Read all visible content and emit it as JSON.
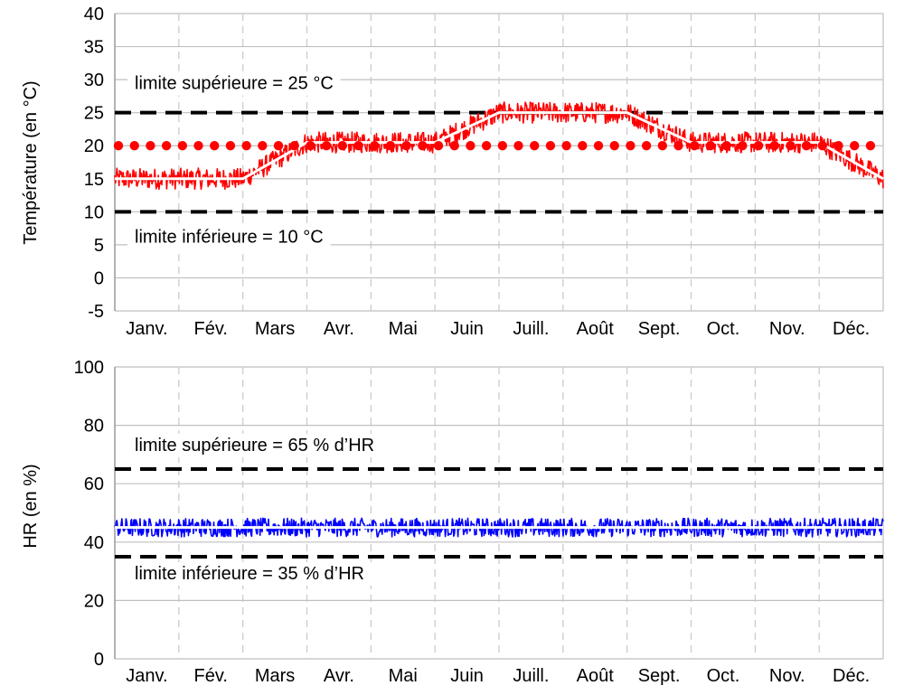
{
  "chart_data": [
    {
      "type": "line",
      "ylabel": "Température (en °C)",
      "ylim": [
        -5,
        40
      ],
      "yticks": [
        -5,
        0,
        5,
        10,
        15,
        20,
        25,
        30,
        35,
        40
      ],
      "categories": [
        "Janv.",
        "Fév.",
        "Mars",
        "Avr.",
        "Mai",
        "Juin",
        "Juill.",
        "Août",
        "Sept.",
        "Oct.",
        "Nov.",
        "Déc."
      ],
      "grid": "on",
      "series": [
        {
          "values": [
            15,
            15,
            20.5,
            20.5,
            25,
            25,
            20.5,
            20.5,
            15
          ],
          "x": [
            0,
            2,
            3,
            5,
            6,
            8,
            9,
            11,
            12
          ],
          "noise_band": 2,
          "color": "#ff0000"
        },
        {
          "values": [
            20,
            20
          ],
          "x": [
            0,
            12
          ],
          "style": "dotted",
          "color": "#ff0000"
        }
      ],
      "limits": [
        {
          "value": 25,
          "label": "limite supérieure = 25 °C"
        },
        {
          "value": 10,
          "label": "limite inférieure = 10 °C"
        }
      ]
    },
    {
      "type": "line",
      "ylabel": "HR (en %)",
      "ylim": [
        0,
        100
      ],
      "yticks": [
        0,
        20,
        40,
        60,
        80,
        100
      ],
      "categories": [
        "Janv.",
        "Fév.",
        "Mars",
        "Avr.",
        "Mai",
        "Juin",
        "Juill.",
        "Août",
        "Sept.",
        "Oct.",
        "Nov.",
        "Déc."
      ],
      "grid": "on",
      "series": [
        {
          "values": [
            45,
            45
          ],
          "x": [
            0,
            12
          ],
          "noise_band": 4,
          "color": "#0000ff"
        }
      ],
      "limits": [
        {
          "value": 65,
          "label": "limite supérieure = 65 % d’HR"
        },
        {
          "value": 35,
          "label": "limite inférieure = 35 % d’HR"
        }
      ]
    }
  ]
}
